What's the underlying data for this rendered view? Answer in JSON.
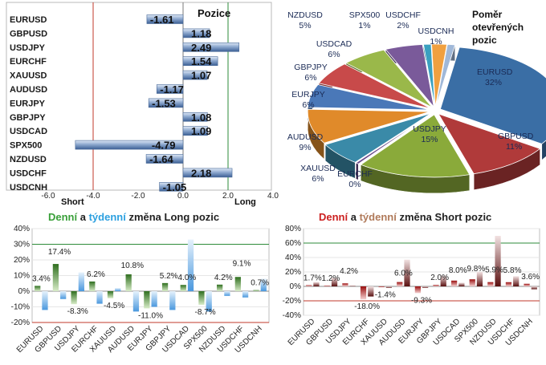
{
  "chart_data": [
    {
      "type": "bar",
      "title": "Pozice",
      "categories": [
        "EURUSD",
        "GBPUSD",
        "USDJPY",
        "EURCHF",
        "XAUUSD",
        "AUDUSD",
        "EURJPY",
        "GBPJPY",
        "USDCAD",
        "SPX500",
        "NZDUSD",
        "USDCHF",
        "USDCNH"
      ],
      "values": [
        -1.61,
        1.18,
        2.49,
        1.54,
        1.07,
        -1.17,
        -1.53,
        1.08,
        1.09,
        -4.79,
        -1.64,
        2.18,
        -1.05
      ],
      "value_labels": [
        "-1.61",
        "1.18",
        "2.49",
        "1.54",
        "1.07",
        "-1.17",
        "-1.53",
        "1.08",
        "1.09",
        "-4.79",
        "-1.64",
        "2.18",
        "-1.05"
      ],
      "ticks": [
        "-6.0",
        "-4.0",
        "-2.0",
        "0.0",
        "2.0",
        "4.0"
      ],
      "xlim": [
        -6,
        4
      ],
      "short_label": "Short",
      "long_label": "Long"
    },
    {
      "type": "pie",
      "title_lines": [
        "Poměr",
        "otevřených",
        "pozic"
      ],
      "slices": [
        {
          "label": "EURUSD",
          "value": 32,
          "pct": "32%",
          "color": "#3a6ea5"
        },
        {
          "label": "GBPUSD",
          "value": 11,
          "pct": "11%",
          "color": "#b03a3a"
        },
        {
          "label": "USDJPY",
          "value": 15,
          "pct": "15%",
          "color": "#8aaa3a"
        },
        {
          "label": "EURCHF",
          "value": 0,
          "pct": "0%",
          "color": "#6a4a8a"
        },
        {
          "label": "XAUUSD",
          "value": 6,
          "pct": "6%",
          "color": "#3a8aa8"
        },
        {
          "label": "AUDUSD",
          "value": 9,
          "pct": "9%",
          "color": "#e08a2a"
        },
        {
          "label": "EURJPY",
          "value": 6,
          "pct": "6%",
          "color": "#4a78b8"
        },
        {
          "label": "GBPJPY",
          "value": 6,
          "pct": "6%",
          "color": "#c84a4a"
        },
        {
          "label": "USDCAD",
          "value": 6,
          "pct": "6%",
          "color": "#9ab84a"
        },
        {
          "label": "NZDUSD",
          "value": 5,
          "pct": "5%",
          "color": "#7a5a9a"
        },
        {
          "label": "SPX500",
          "value": 1,
          "pct": "1%",
          "color": "#3aa0c0"
        },
        {
          "label": "USDCHF",
          "value": 2,
          "pct": "2%",
          "color": "#f0a040"
        },
        {
          "label": "USDCNH",
          "value": 1,
          "pct": "1%",
          "color": "#a0b8d8"
        }
      ]
    },
    {
      "type": "bar",
      "title_parts": [
        {
          "text": "Denní",
          "color": "#3aa03a"
        },
        {
          "text": " a ",
          "color": "#222222"
        },
        {
          "text": "týdenní",
          "color": "#2ca0e0"
        },
        {
          "text": " změna Long pozic",
          "color": "#222222"
        }
      ],
      "categories": [
        "EURUSD",
        "GBPUSD",
        "USDJPY",
        "EURCHF",
        "XAUUSD",
        "AUDUSD",
        "EURJPY",
        "GBPJPY",
        "USDCAD",
        "SPX500",
        "NZDUSD",
        "USDCHF",
        "USDCNH"
      ],
      "series": [
        {
          "name": "Denní",
          "color": "#3a8a2a",
          "values": [
            3.4,
            17.4,
            -8.3,
            6.2,
            -4.5,
            10.8,
            -11.0,
            5.2,
            4.0,
            -8.7,
            4.2,
            9.1,
            0.7
          ]
        },
        {
          "name": "týdenní",
          "color": "#6aa8e0",
          "values": [
            -12,
            -5,
            12,
            -8,
            2,
            -13,
            -10,
            -12,
            33,
            -13,
            -3,
            -4,
            8
          ]
        }
      ],
      "data_labels": [
        "3.4%",
        "17.4%",
        "-8.3%",
        "6.2%",
        "-4.5%",
        "10.8%",
        "-11.0%",
        "5.2%",
        "4.0%",
        "-8.7%",
        "4.2%",
        "9.1%",
        "0.7%"
      ],
      "ticks": [
        "40%",
        "30%",
        "20%",
        "10%",
        "0%",
        "-10%",
        "-20%"
      ],
      "ylim": [
        -20,
        40
      ]
    },
    {
      "type": "bar",
      "title_parts": [
        {
          "text": "Denní",
          "color": "#cc2020"
        },
        {
          "text": " a ",
          "color": "#222222"
        },
        {
          "text": "týdenní",
          "color": "#b07a5a"
        },
        {
          "text": " změna Short pozic",
          "color": "#222222"
        }
      ],
      "categories": [
        "EURUSD",
        "GBPUSD",
        "USDJPY",
        "EURCHF",
        "XAUUSD",
        "AUDUSD",
        "EURJPY",
        "GBPJPY",
        "USDCAD",
        "SPX500",
        "NZDUSD",
        "USDCHF",
        "USDCNH"
      ],
      "series": [
        {
          "name": "Denní",
          "color": "#c01818",
          "values": [
            1.7,
            1.2,
            4.2,
            -18.0,
            -1.4,
            6.0,
            -9.3,
            2.0,
            8.0,
            9.8,
            5.9,
            5.8,
            3.6
          ]
        },
        {
          "name": "týdenní",
          "color": "#a02828",
          "values": [
            6,
            12,
            1,
            -14,
            -2,
            37,
            -2,
            15,
            5,
            20,
            70,
            14,
            -4
          ]
        }
      ],
      "data_labels": [
        "1.7%",
        "1.2%",
        "4.2%",
        "-18.0%",
        "-1.4%",
        "6.0%",
        "-9.3%",
        "2.0%",
        "8.0%",
        "9.8%",
        "5.9%",
        "5.8%",
        "3.6%"
      ],
      "ticks": [
        "80%",
        "60%",
        "40%",
        "20%",
        "0%",
        "-20%",
        "-40%"
      ],
      "ylim": [
        -40,
        80
      ]
    }
  ]
}
